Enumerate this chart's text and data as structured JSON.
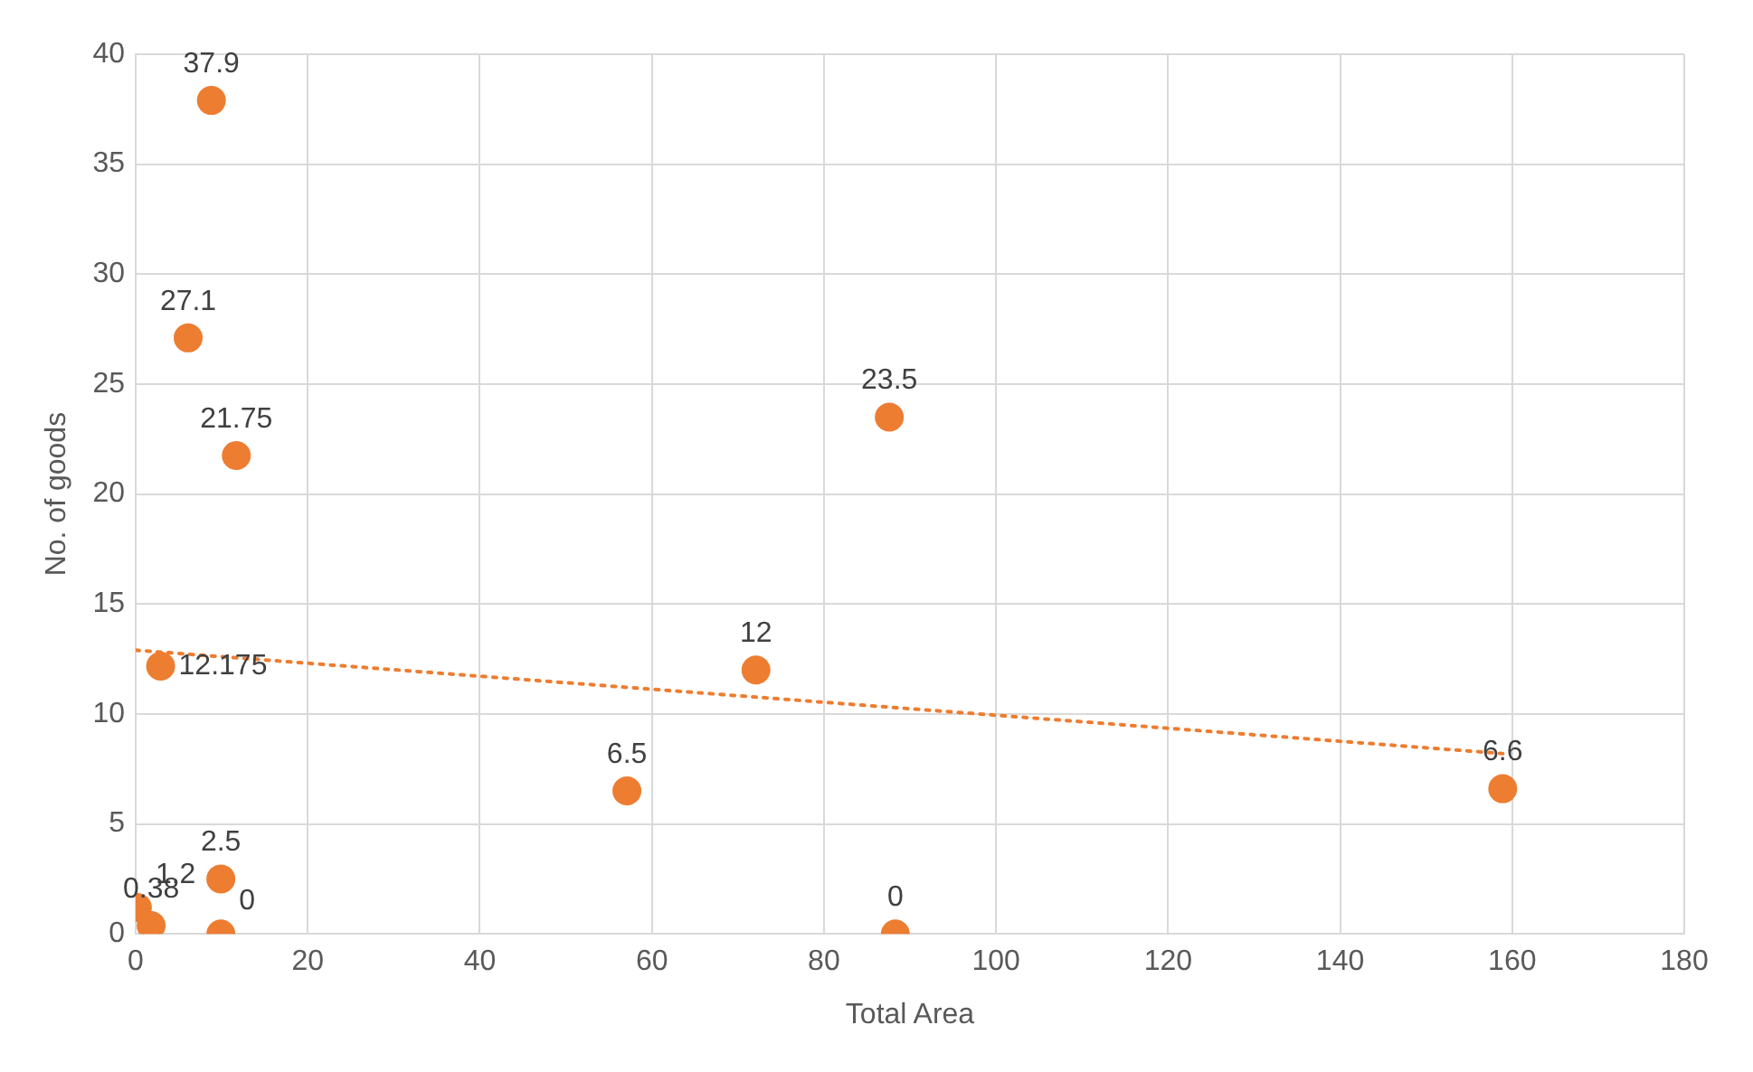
{
  "chart_data": {
    "type": "scatter",
    "xlabel": "Total Area",
    "ylabel": "No. of goods",
    "xlim": [
      0,
      180
    ],
    "xticks": [
      0,
      20,
      40,
      60,
      80,
      100,
      120,
      140,
      160,
      180
    ],
    "ylim": [
      0,
      40
    ],
    "yticks": [
      0,
      5,
      10,
      15,
      20,
      25,
      30,
      35,
      40
    ],
    "grid": true,
    "legend": false,
    "marker": "circle",
    "series": [
      {
        "color": "#ed7d31",
        "data_labels": true,
        "x": [
          8.8,
          6.1,
          11.7,
          2.9,
          0.2,
          1.8,
          9.9,
          9.9,
          57.1,
          72.1,
          87.6,
          88.3,
          158.9
        ],
        "values": [
          37.9,
          27.1,
          21.75,
          12.175,
          1.2,
          0.38,
          2.5,
          0,
          6.5,
          12,
          23.5,
          0,
          6.6
        ]
      },
      {
        "type": "line",
        "color": "#ed7d31",
        "line_style": "dotted",
        "marker": "none",
        "x": [
          0,
          158.9
        ],
        "values": [
          12.9,
          8.2
        ]
      }
    ]
  }
}
